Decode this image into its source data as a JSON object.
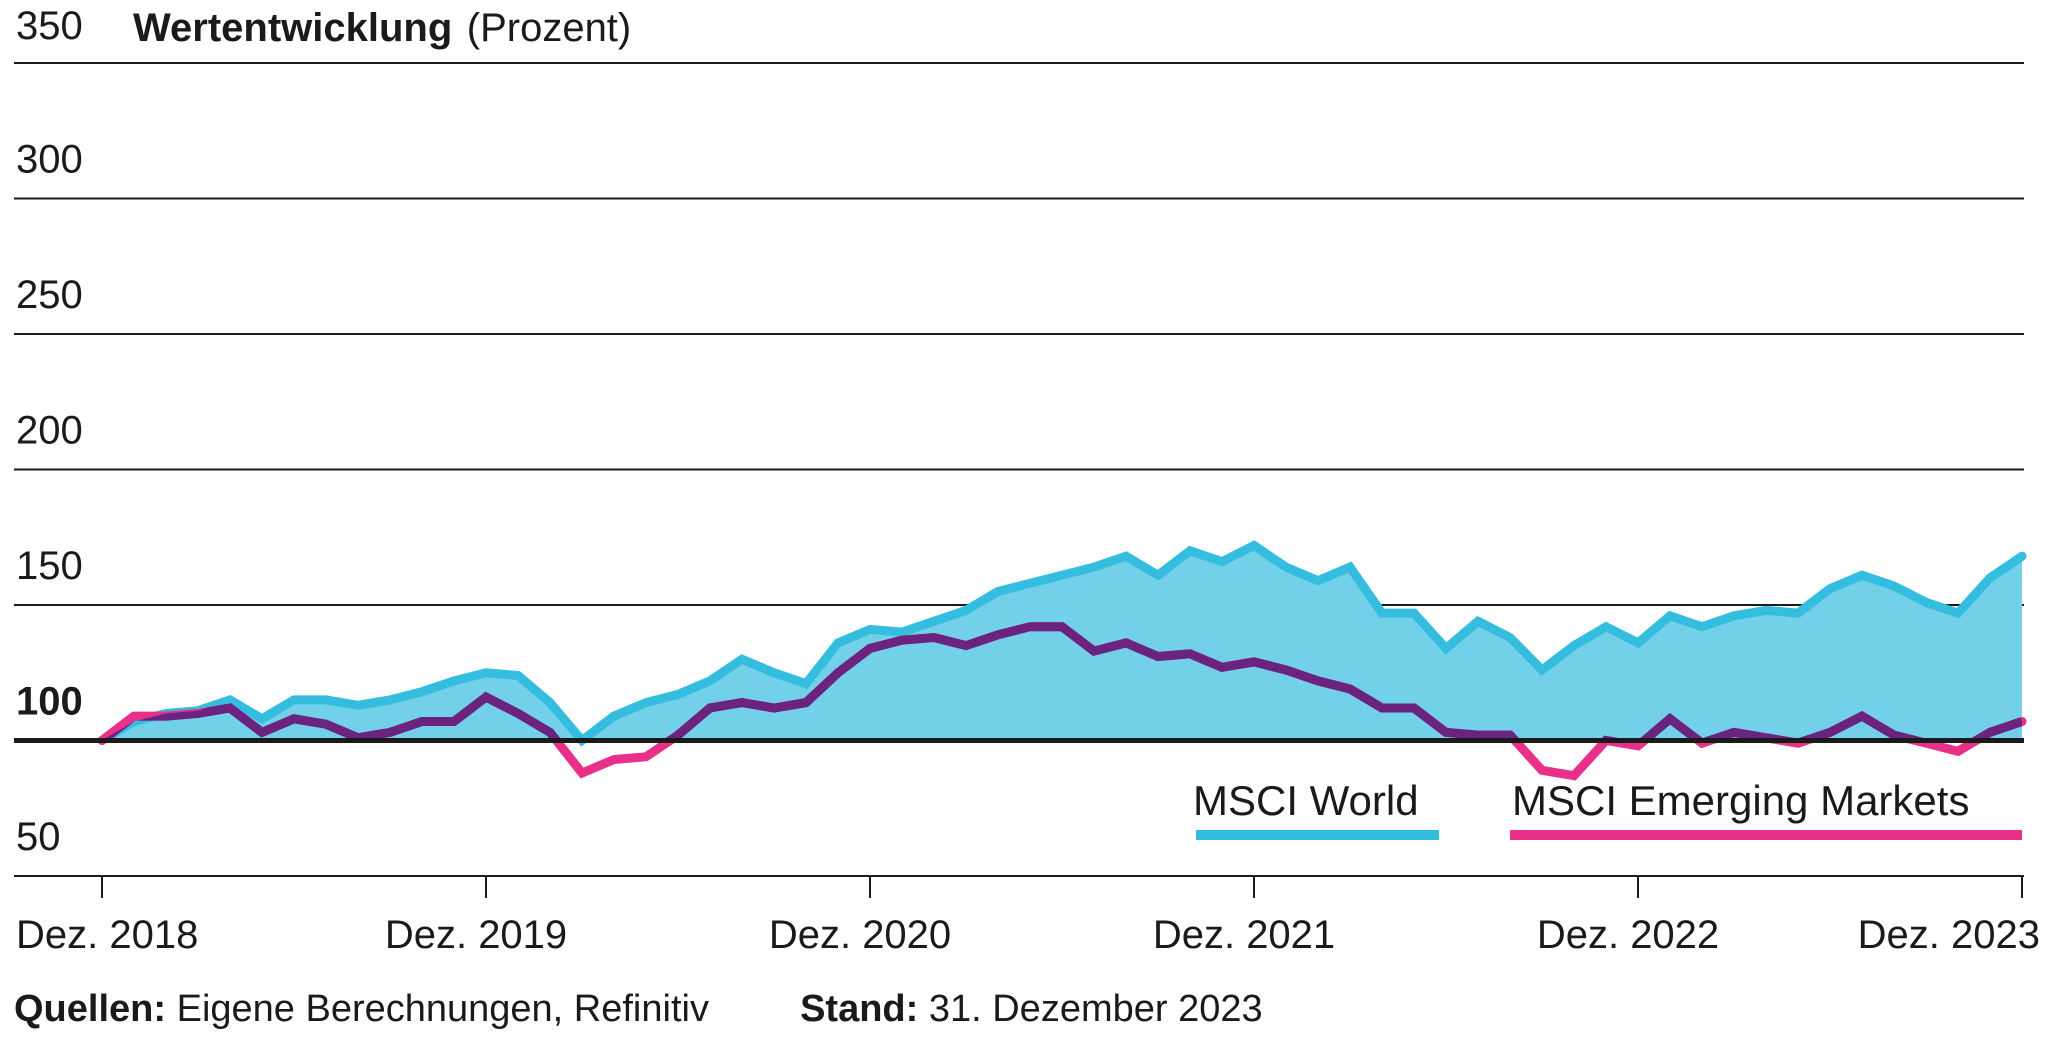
{
  "chart_data": {
    "type": "area",
    "title": "Wertentwicklung",
    "title_unit": "(Prozent)",
    "xlabel": "",
    "ylabel": "Prozent",
    "ylim": [
      50,
      350
    ],
    "yticks": [
      350,
      300,
      250,
      200,
      150,
      100,
      50
    ],
    "ytick_labels": [
      "350",
      "300",
      "250",
      "200",
      "150",
      "100",
      "50"
    ],
    "baseline": 100,
    "xticks": [
      {
        "month_index": 0,
        "label": "Dez. 2018"
      },
      {
        "month_index": 12,
        "label": "Dez. 2019"
      },
      {
        "month_index": 24,
        "label": "Dez. 2020"
      },
      {
        "month_index": 36,
        "label": "Dez. 2021"
      },
      {
        "month_index": 48,
        "label": "Dez. 2022"
      },
      {
        "month_index": 60,
        "label": "Dez. 2023"
      }
    ],
    "x_frequency": "monthly",
    "x_start": "Dez. 2018",
    "x_end": "Dez. 2023",
    "grid": true,
    "legend_position": "bottom-right",
    "series": [
      {
        "name": "MSCI World",
        "color": "#35bde0",
        "fill": "#72d0e8",
        "values": [
          100,
          107,
          110,
          111,
          115,
          108,
          115,
          115,
          113,
          115,
          118,
          122,
          125,
          124,
          114,
          100,
          109,
          114,
          117,
          122,
          130,
          125,
          121,
          136,
          141,
          140,
          144,
          148,
          155,
          158,
          161,
          164,
          168,
          161,
          170,
          166,
          172,
          164,
          159,
          164,
          147,
          147,
          134,
          144,
          138,
          126,
          135,
          142,
          136,
          146,
          142,
          146,
          148,
          147,
          156,
          161,
          157,
          151,
          147,
          160,
          168
        ]
      },
      {
        "name": "MSCI Emerging Markets",
        "color": "#e8308a",
        "overlap_color": "#6a237f",
        "values": [
          100,
          109,
          109,
          110,
          112,
          103,
          108,
          106,
          101,
          103,
          107,
          107,
          116,
          110,
          103,
          88,
          93,
          94,
          102,
          112,
          114,
          112,
          114,
          125,
          134,
          137,
          138,
          135,
          139,
          142,
          142,
          133,
          136,
          131,
          132,
          127,
          129,
          126,
          122,
          119,
          112,
          112,
          103,
          102,
          102,
          89,
          87,
          100,
          98,
          108,
          99,
          103,
          101,
          99,
          103,
          109,
          102,
          99,
          96,
          103,
          107
        ]
      }
    ]
  },
  "footer": {
    "sources_label": "Quellen:",
    "sources_value": "Eigene Berechnungen, Refinitiv",
    "date_label": "Stand:",
    "date_value": "31. Dezember 2023"
  }
}
